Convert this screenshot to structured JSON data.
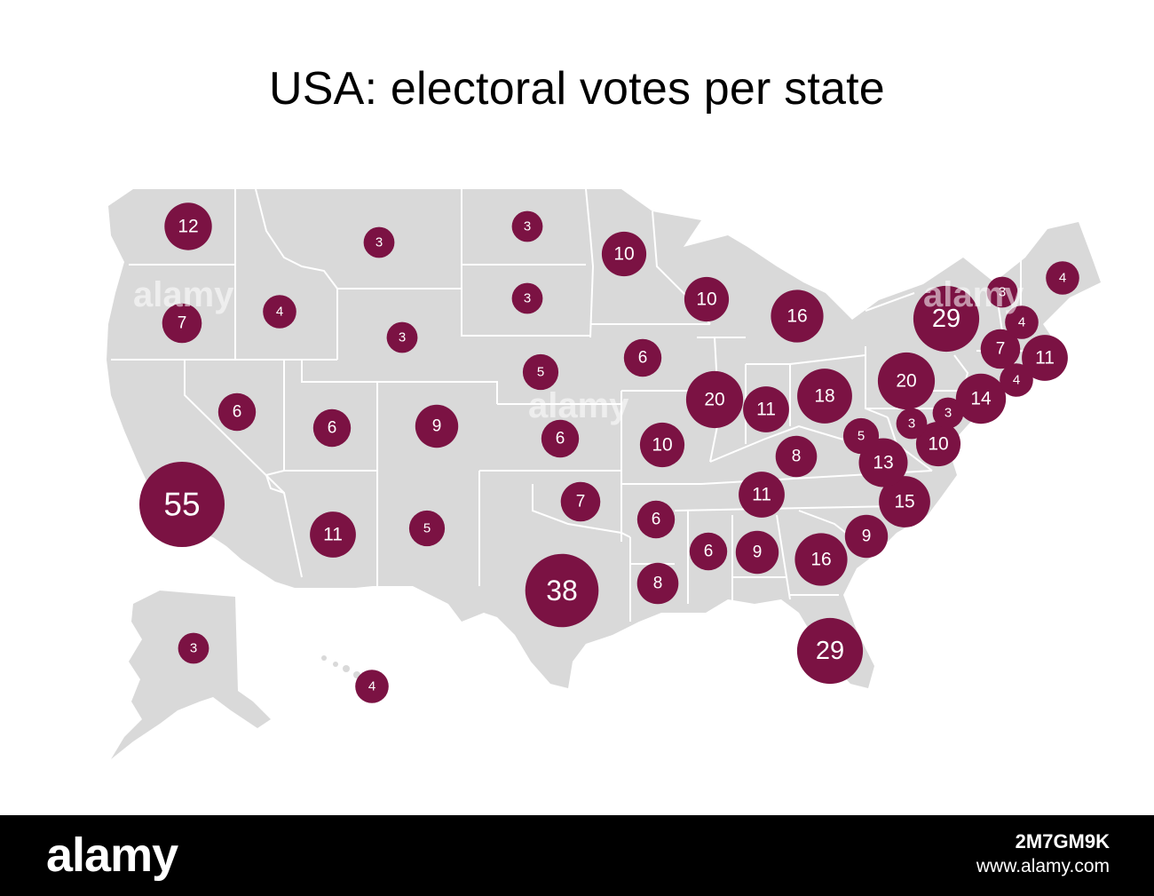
{
  "title": "USA: electoral votes per state",
  "colors": {
    "land": "#d9d9d9",
    "border": "#ffffff",
    "bubble": "#7b1243",
    "bubble_text": "#ffffff"
  },
  "states": [
    {
      "id": "wa",
      "value": 12
    },
    {
      "id": "or",
      "value": 7
    },
    {
      "id": "ca",
      "value": 55
    },
    {
      "id": "nv",
      "value": 6
    },
    {
      "id": "id",
      "value": 4
    },
    {
      "id": "mt",
      "value": 3
    },
    {
      "id": "wy",
      "value": 3
    },
    {
      "id": "ut",
      "value": 6
    },
    {
      "id": "az",
      "value": 11
    },
    {
      "id": "co",
      "value": 9
    },
    {
      "id": "nm",
      "value": 5
    },
    {
      "id": "nd",
      "value": 3
    },
    {
      "id": "sd",
      "value": 3
    },
    {
      "id": "ne",
      "value": 5
    },
    {
      "id": "ks",
      "value": 6
    },
    {
      "id": "ok",
      "value": 7
    },
    {
      "id": "tx",
      "value": 38
    },
    {
      "id": "mn",
      "value": 10
    },
    {
      "id": "ia",
      "value": 6
    },
    {
      "id": "mo",
      "value": 10
    },
    {
      "id": "ar",
      "value": 6
    },
    {
      "id": "la",
      "value": 8
    },
    {
      "id": "wi",
      "value": 10
    },
    {
      "id": "il",
      "value": 20
    },
    {
      "id": "mi",
      "value": 16
    },
    {
      "id": "in",
      "value": 11
    },
    {
      "id": "oh",
      "value": 18
    },
    {
      "id": "ky",
      "value": 8
    },
    {
      "id": "tn",
      "value": 11
    },
    {
      "id": "ms",
      "value": 6
    },
    {
      "id": "al",
      "value": 9
    },
    {
      "id": "ga",
      "value": 16
    },
    {
      "id": "fl",
      "value": 29
    },
    {
      "id": "sc",
      "value": 9
    },
    {
      "id": "nc",
      "value": 15
    },
    {
      "id": "va",
      "value": 13
    },
    {
      "id": "wv",
      "value": 5
    },
    {
      "id": "md",
      "value": 10
    },
    {
      "id": "de",
      "value": 3
    },
    {
      "id": "dc",
      "value": 3
    },
    {
      "id": "pa",
      "value": 20
    },
    {
      "id": "nj",
      "value": 14
    },
    {
      "id": "ny",
      "value": 29
    },
    {
      "id": "ct",
      "value": 7
    },
    {
      "id": "ri",
      "value": 4
    },
    {
      "id": "ma",
      "value": 11
    },
    {
      "id": "vt",
      "value": 3
    },
    {
      "id": "nh",
      "value": 4
    },
    {
      "id": "me",
      "value": 4
    },
    {
      "id": "ak",
      "value": 3
    },
    {
      "id": "hi",
      "value": 4
    }
  ],
  "footer": {
    "brand": "alamy",
    "image_id": "2M7GM9K",
    "site": "www.alamy.com"
  }
}
